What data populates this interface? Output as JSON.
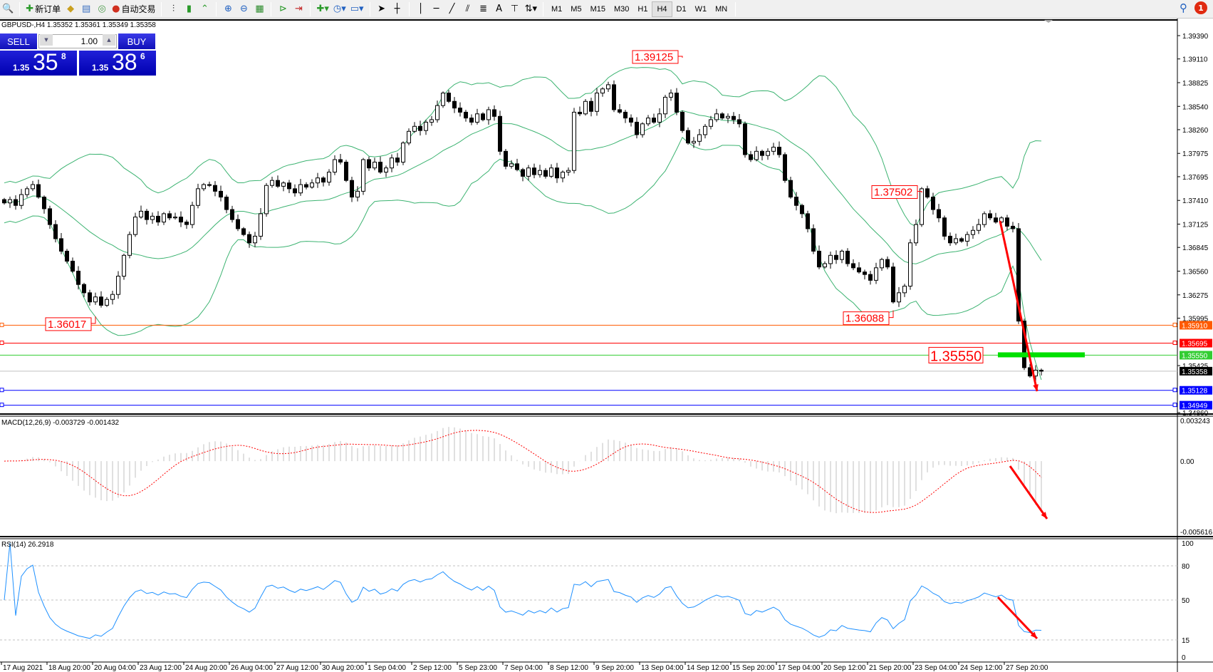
{
  "toolbar": {
    "new_order": "新订单",
    "auto_trading": "自动交易",
    "timeframes": [
      "M1",
      "M5",
      "M15",
      "M30",
      "H1",
      "H4",
      "D1",
      "W1",
      "MN"
    ],
    "active_timeframe": "H4",
    "notifications": "1"
  },
  "symbol_line": "GBPUSD-,H4  1.35352 1.35361 1.35349 1.35358",
  "one_click": {
    "sell": "SELL",
    "buy": "BUY",
    "lot": "1.00",
    "sell_prefix": "1.35",
    "sell_big": "35",
    "sell_sup": "8",
    "buy_prefix": "1.35",
    "buy_big": "38",
    "buy_sup": "6"
  },
  "colors": {
    "bands": "#3cb371",
    "macd_signal": "#ff0000",
    "rsi": "#1e90ff",
    "arrow": "#ff0000",
    "level_green": "#00e000"
  },
  "chart_data": {
    "type": "candlestick",
    "symbol": "GBPUSD-",
    "timeframe": "H4",
    "closes": [
      1.3738,
      1.3742,
      1.3735,
      1.3748,
      1.3755,
      1.376,
      1.3745,
      1.3731,
      1.3712,
      1.3695,
      1.368,
      1.3668,
      1.3656,
      1.364,
      1.363,
      1.3619,
      1.3625,
      1.3615,
      1.3622,
      1.3628,
      1.365,
      1.3675,
      1.37,
      1.3721,
      1.3728,
      1.3718,
      1.3722,
      1.3715,
      1.3725,
      1.372,
      1.3721,
      1.3715,
      1.3712,
      1.3735,
      1.3755,
      1.376,
      1.3759,
      1.3752,
      1.3745,
      1.373,
      1.3718,
      1.3707,
      1.37,
      1.369,
      1.3698,
      1.3725,
      1.3759,
      1.3765,
      1.3758,
      1.3762,
      1.3755,
      1.375,
      1.376,
      1.3757,
      1.3762,
      1.3768,
      1.3763,
      1.3775,
      1.379,
      1.3787,
      1.3765,
      1.3745,
      1.3752,
      1.379,
      1.378,
      1.3787,
      1.3775,
      1.378,
      1.3792,
      1.3787,
      1.381,
      1.3824,
      1.383,
      1.3825,
      1.3835,
      1.3838,
      1.3855,
      1.387,
      1.386,
      1.3852,
      1.3847,
      1.384,
      1.3835,
      1.3845,
      1.3838,
      1.385,
      1.3842,
      1.38,
      1.3782,
      1.3785,
      1.3778,
      1.377,
      1.378,
      1.3772,
      1.3777,
      1.377,
      1.378,
      1.3768,
      1.3775,
      1.3777,
      1.3847,
      1.3845,
      1.386,
      1.3848,
      1.387,
      1.3875,
      1.388,
      1.385,
      1.3847,
      1.384,
      1.3835,
      1.382,
      1.3833,
      1.384,
      1.3835,
      1.3845,
      1.3865,
      1.387,
      1.3847,
      1.3825,
      1.381,
      1.3812,
      1.382,
      1.383,
      1.3838,
      1.3845,
      1.384,
      1.3842,
      1.3838,
      1.3833,
      1.3796,
      1.379,
      1.38,
      1.3795,
      1.38,
      1.3805,
      1.3796,
      1.3765,
      1.3745,
      1.3735,
      1.3725,
      1.3707,
      1.368,
      1.3661,
      1.3665,
      1.3675,
      1.367,
      1.368,
      1.3665,
      1.366,
      1.3655,
      1.3652,
      1.3645,
      1.366,
      1.367,
      1.3661,
      1.3619,
      1.363,
      1.3638,
      1.369,
      1.3712,
      1.3755,
      1.3745,
      1.373,
      1.372,
      1.3698,
      1.369,
      1.3695,
      1.3692,
      1.37,
      1.3705,
      1.3712,
      1.3725,
      1.372,
      1.3715,
      1.372,
      1.371,
      1.3707,
      1.3596,
      1.354,
      1.353,
      1.3537,
      1.35358
    ],
    "ylim": [
      1.3486,
      1.3939
    ],
    "price_ticks": [
      "1.39390",
      "1.39110",
      "1.38825",
      "1.38540",
      "1.38260",
      "1.37975",
      "1.37695",
      "1.37410",
      "1.37125",
      "1.36845",
      "1.36560",
      "1.36275",
      "1.35995",
      "1.35425",
      "1.34860"
    ],
    "time_labels": [
      "17 Aug 2021",
      "18 Aug 20:00",
      "20 Aug 04:00",
      "23 Aug 12:00",
      "24 Aug 20:00",
      "26 Aug 04:00",
      "27 Aug 12:00",
      "30 Aug 20:00",
      "1 Sep 04:00",
      "2 Sep 12:00",
      "5 Sep 23:00",
      "7 Sep 04:00",
      "8 Sep 12:00",
      "9 Sep 20:00",
      "13 Sep 04:00",
      "14 Sep 12:00",
      "15 Sep 20:00",
      "17 Sep 04:00",
      "20 Sep 12:00",
      "21 Sep 20:00",
      "23 Sep 04:00",
      "24 Sep 12:00",
      "27 Sep 20:00"
    ],
    "bollinger": {
      "period": 20,
      "deviation": 2
    },
    "price_labels": [
      {
        "text": "1.39125",
        "value": 1.39125,
        "bar": 119
      },
      {
        "text": "1.37502",
        "value": 1.37502,
        "bar": 161
      },
      {
        "text": "1.36017",
        "value": 1.36017,
        "bar": 16
      },
      {
        "text": "1.36088",
        "value": 1.36088,
        "bar": 156
      }
    ],
    "hlines": [
      {
        "value": 1.3591,
        "label": "1.35910",
        "color": "#ff5a00"
      },
      {
        "value": 1.35695,
        "label": "1.35695",
        "color": "#ff0000"
      },
      {
        "value": 1.3555,
        "label": "1.35550",
        "color": "#32cd32"
      },
      {
        "value": 1.35358,
        "label": "1.35358",
        "color": "#c0c0c0",
        "label_bg": "#000000"
      },
      {
        "value": 1.35128,
        "label": "1.35128",
        "color": "#0000ff"
      },
      {
        "value": 1.34949,
        "label": "1.34949",
        "color": "#0000ff"
      }
    ],
    "level_label": "1.35550",
    "macd": {
      "title": "MACD(12,26,9) -0.003729 -0.001432",
      "fast": 12,
      "slow": 26,
      "signal": 9,
      "ylim": [
        -0.005616,
        0.003243
      ],
      "ticks": [
        "0.003243",
        "0.00",
        "-0.005616"
      ]
    },
    "rsi": {
      "title": "RSI(14) 26.2918",
      "period": 14,
      "levels": [
        80,
        50,
        15
      ],
      "ticks": [
        "100",
        "80",
        "50",
        "15",
        "0"
      ]
    }
  }
}
